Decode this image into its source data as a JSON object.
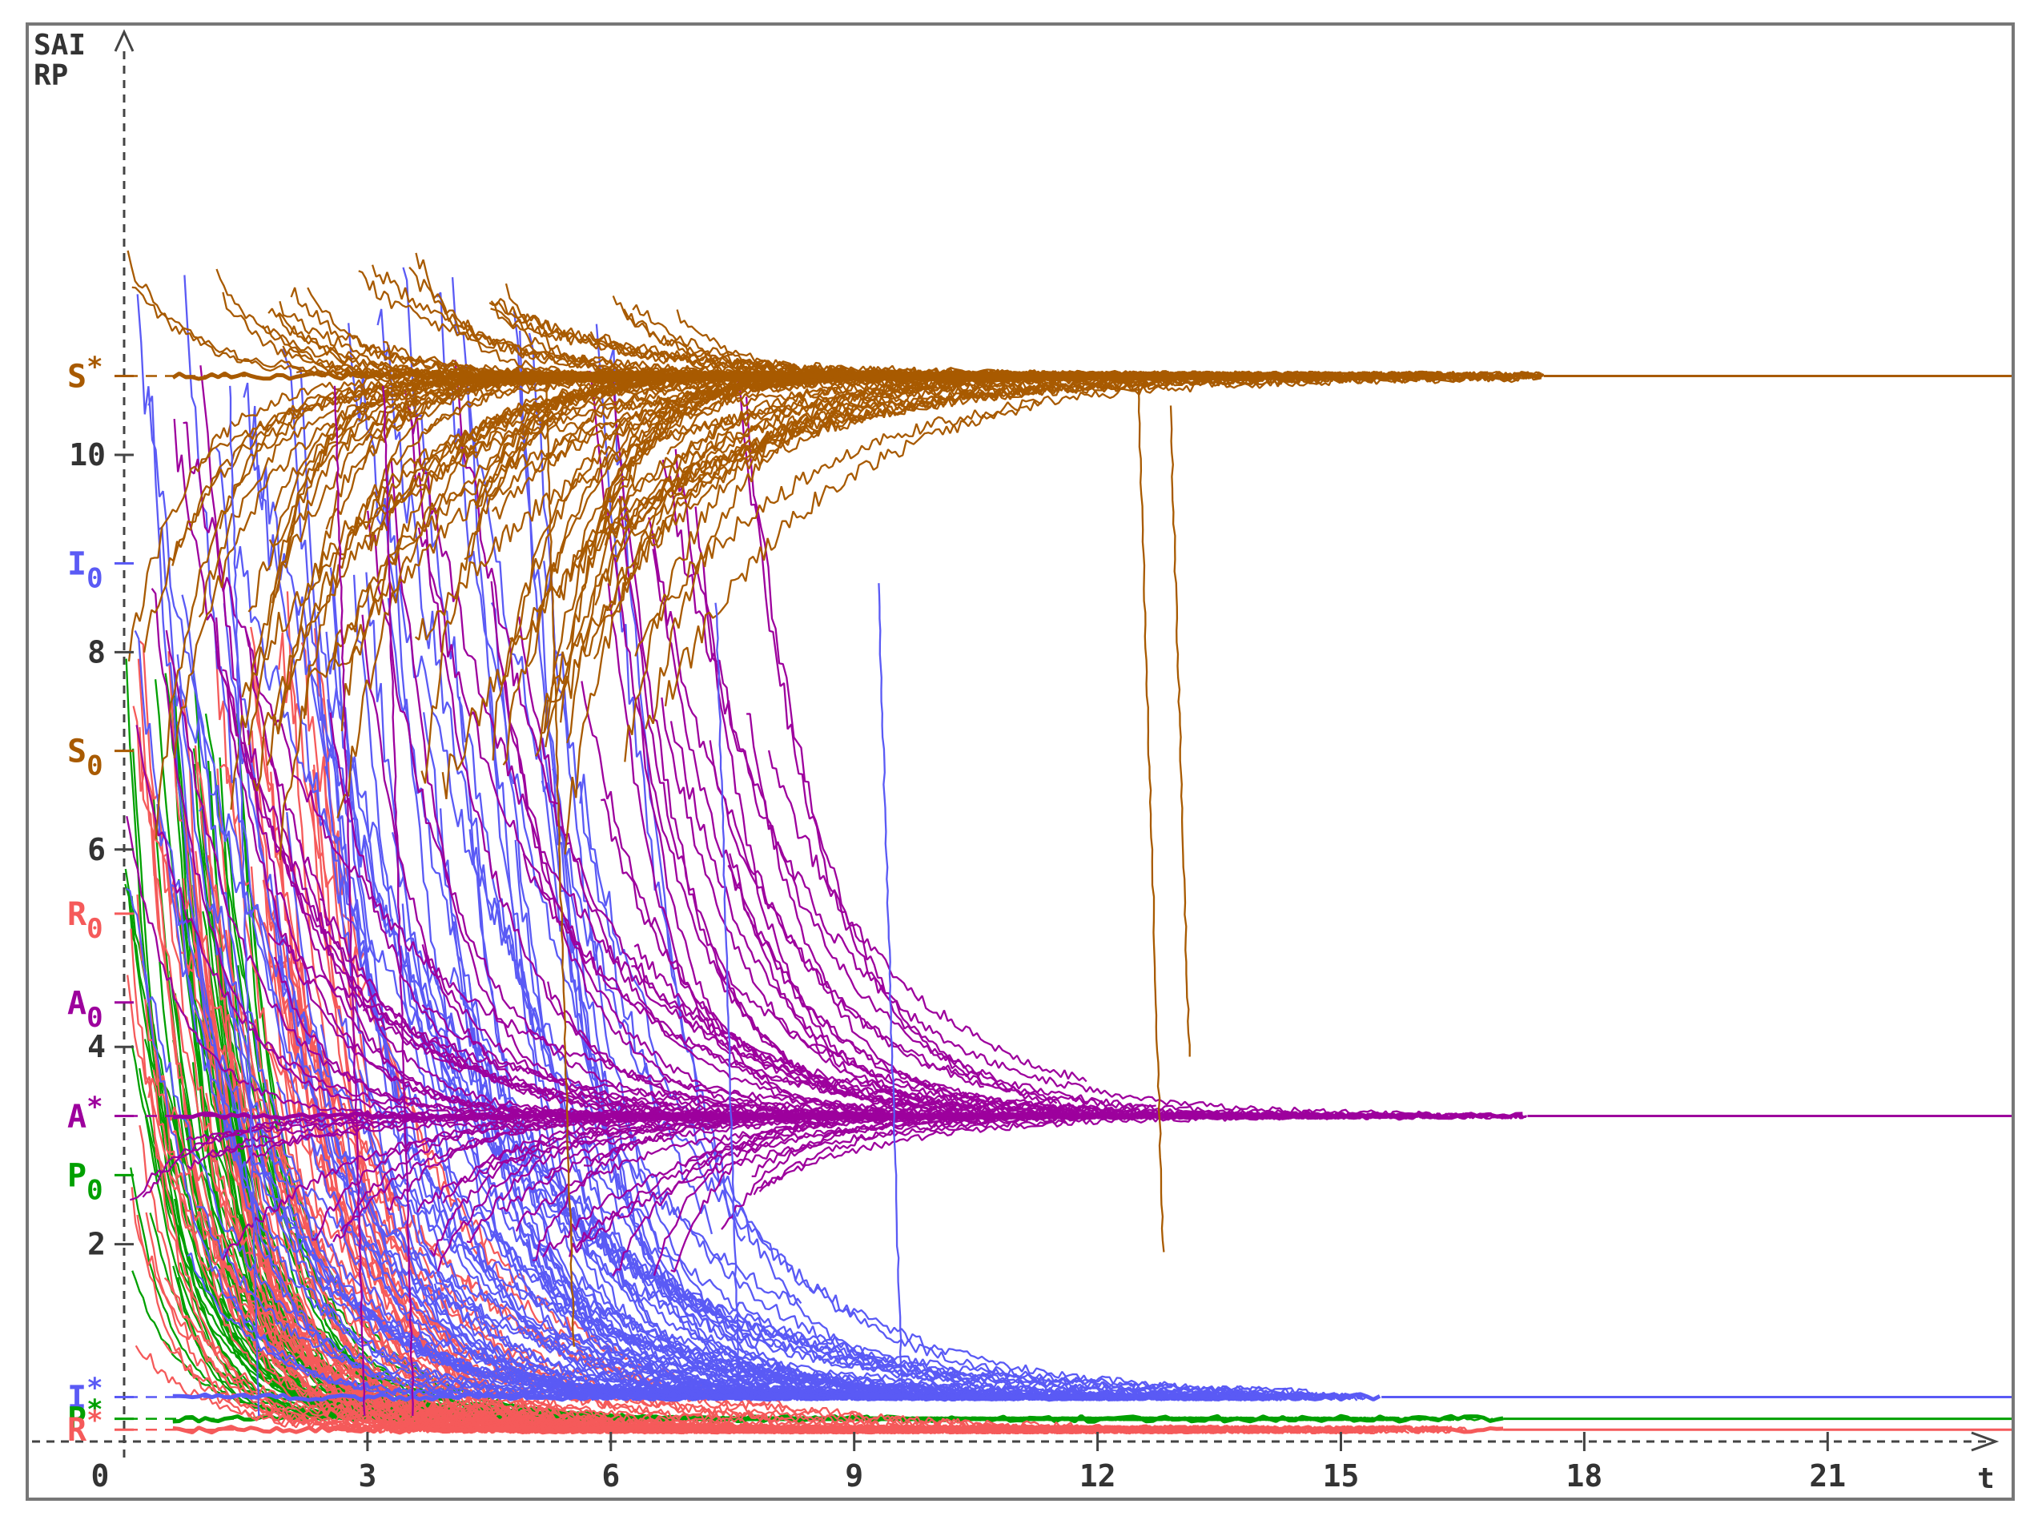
{
  "chart_data": {
    "type": "line",
    "y_axis_title_lines": [
      "SAI",
      "RP"
    ],
    "x_axis_title": "t",
    "xlim": [
      0,
      23
    ],
    "ylim": [
      0,
      10.7
    ],
    "x_ticks": [
      0,
      3,
      6,
      9,
      12,
      15,
      18,
      21
    ],
    "x_tick_labels": [
      "0",
      "3",
      "6",
      "9",
      "12",
      "15",
      "18",
      "21"
    ],
    "y_ticks": [
      2,
      4,
      6,
      8,
      10
    ],
    "y_tick_labels": [
      "2",
      "4",
      "6",
      "8",
      "10"
    ],
    "grid": false,
    "markers": [
      {
        "id": "s-star",
        "base": "S",
        "mark": "*",
        "y": 10.8,
        "color": "#a85a00"
      },
      {
        "id": "i-zero",
        "base": "I",
        "mark": "0",
        "y": 8.9,
        "color": "#5a5af5"
      },
      {
        "id": "s-zero",
        "base": "S",
        "mark": "0",
        "y": 7.0,
        "color": "#a85a00"
      },
      {
        "id": "r-zero",
        "base": "R",
        "mark": "0",
        "y": 5.35,
        "color": "#f55a5a"
      },
      {
        "id": "a-zero",
        "base": "A",
        "mark": "0",
        "y": 4.45,
        "color": "#9d009d"
      },
      {
        "id": "a-star",
        "base": "A",
        "mark": "*",
        "y": 3.3,
        "color": "#9d009d"
      },
      {
        "id": "p-zero",
        "base": "P",
        "mark": "0",
        "y": 2.7,
        "color": "#00a000"
      },
      {
        "id": "i-star",
        "base": "I",
        "mark": "*",
        "y": 0.45,
        "color": "#5a5af5"
      },
      {
        "id": "p-star",
        "base": "P",
        "mark": "*",
        "y": 0.23,
        "color": "#00a000"
      },
      {
        "id": "r-star",
        "base": "R",
        "mark": "*",
        "y": 0.12,
        "color": "#f55a5a"
      }
    ],
    "series": [
      {
        "id": "S",
        "color": "#a85a00",
        "equilibrium": 10.8,
        "initial": 7.0,
        "settle_t": 17.5
      },
      {
        "id": "A",
        "color": "#9d009d",
        "equilibrium": 3.3,
        "initial": 4.45,
        "settle_t": 17.3
      },
      {
        "id": "I",
        "color": "#5a5af5",
        "equilibrium": 0.45,
        "initial": 8.9,
        "settle_t": 15.5
      },
      {
        "id": "P",
        "color": "#00a000",
        "equilibrium": 0.23,
        "initial": 2.7,
        "settle_t": 17.0
      },
      {
        "id": "R",
        "color": "#f55a5a",
        "equilibrium": 0.12,
        "initial": 5.35,
        "settle_t": 17.0
      }
    ]
  }
}
